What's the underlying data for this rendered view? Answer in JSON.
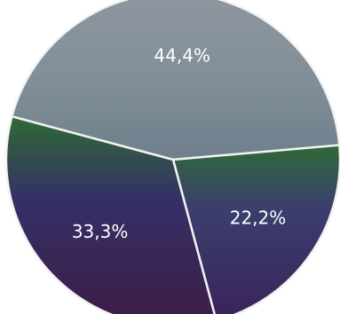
{
  "chart_data": {
    "type": "pie",
    "title": "",
    "slices": [
      {
        "label": "44,4%",
        "value": 44.4,
        "color": "#7f8e9a"
      },
      {
        "label": "22,2%",
        "value": 22.2,
        "color": "#3a2f62"
      },
      {
        "label": "33,3%",
        "value": 33.3,
        "color": "#3c2d55"
      }
    ],
    "start_direction": "left-upper",
    "stroke_color": "#f2f2f2",
    "legend": "none"
  }
}
